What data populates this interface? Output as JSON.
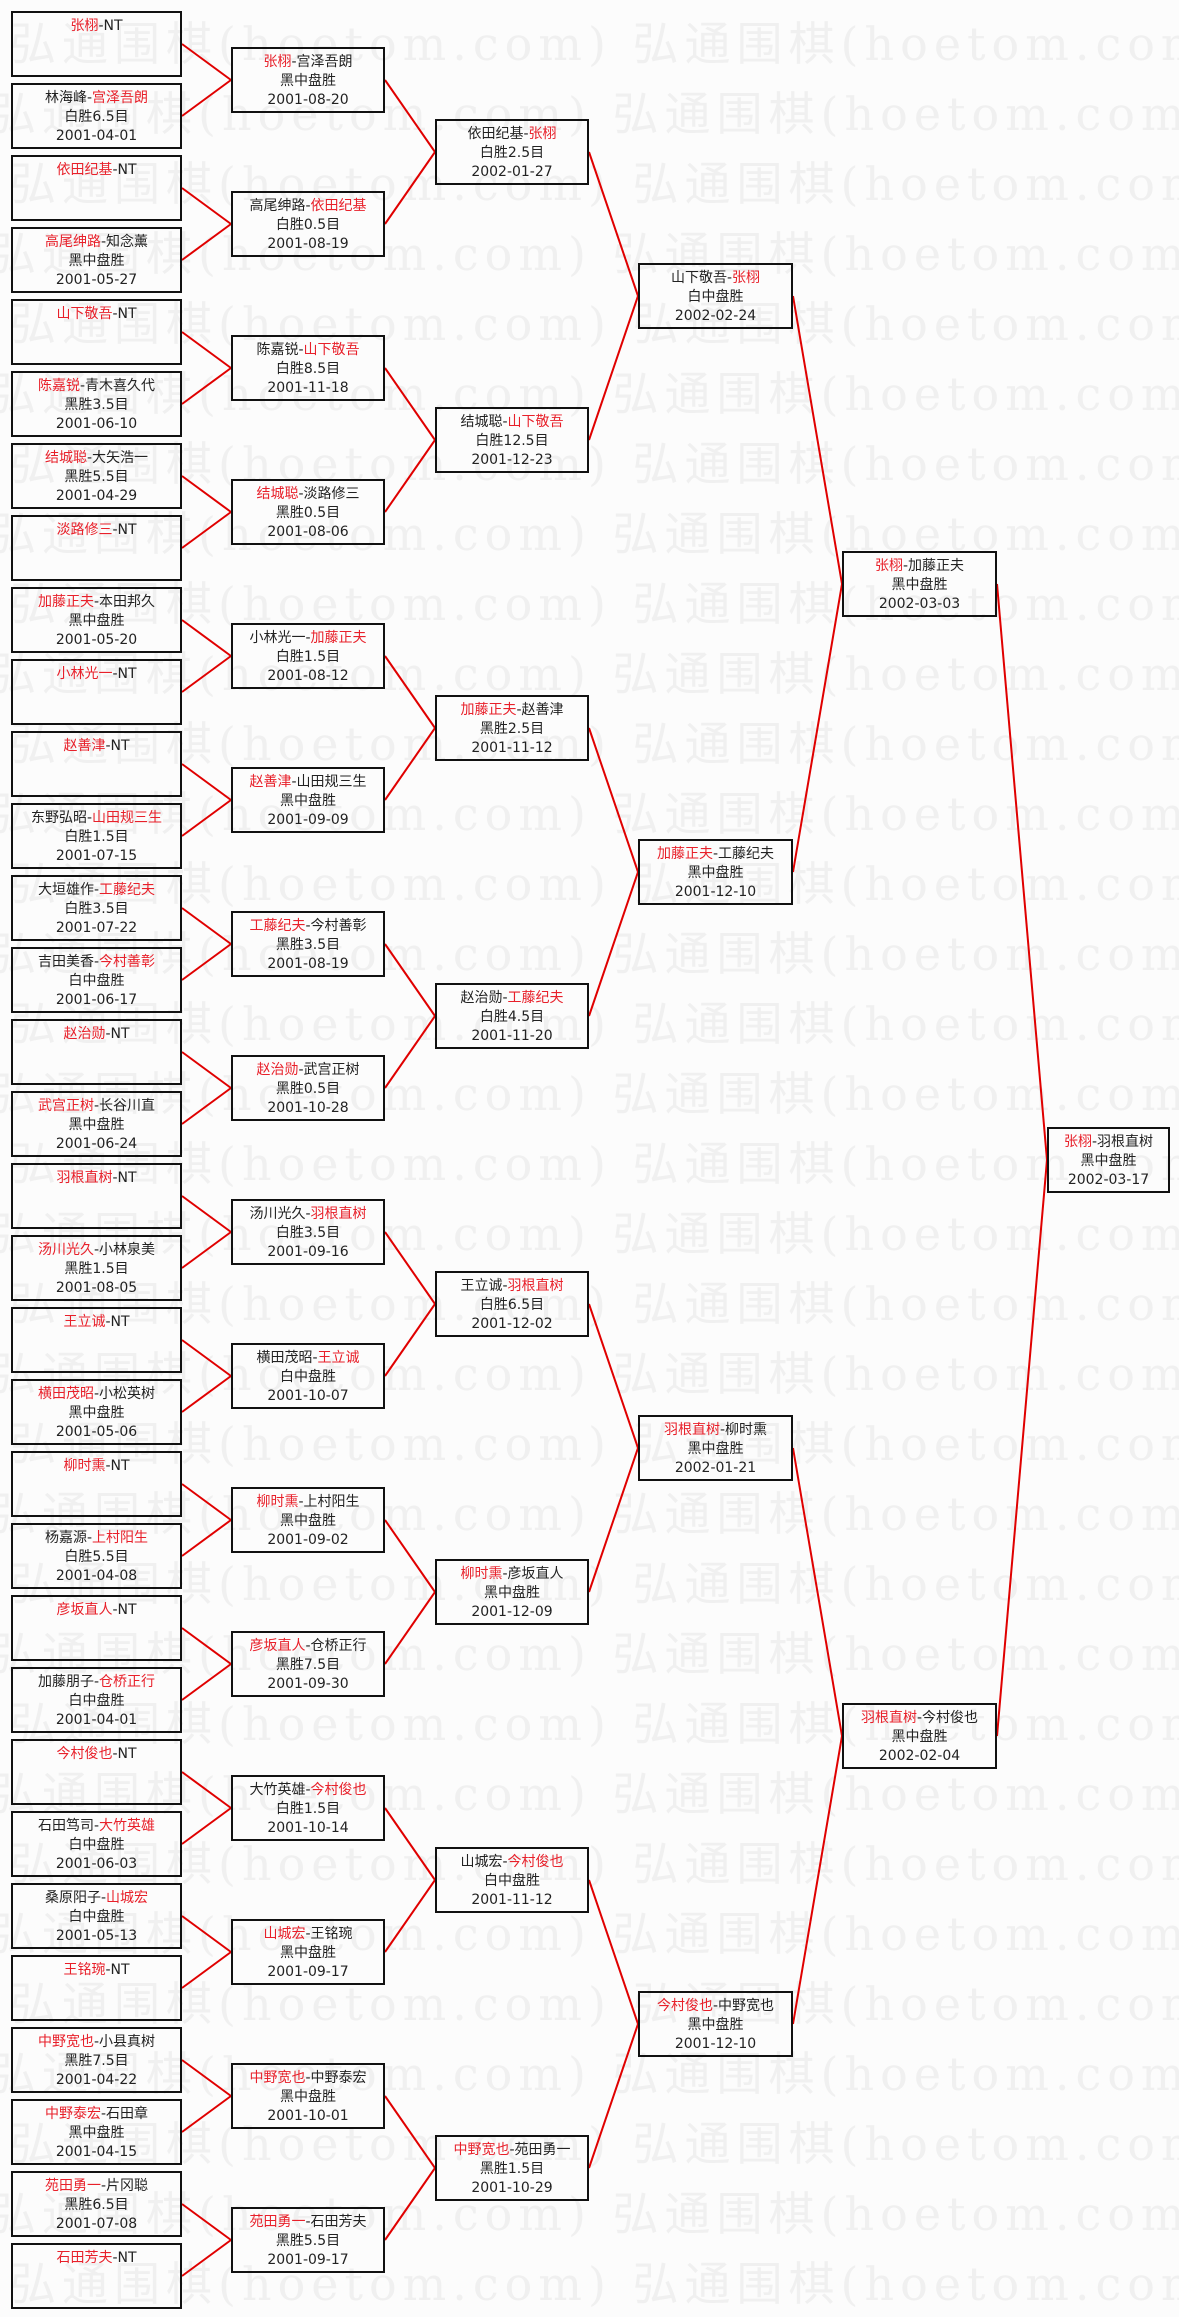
{
  "watermark": "弘通围棋(hoetom.com)",
  "colors": {
    "winner": "#e8202a",
    "line": "#e00000",
    "border": "#111111",
    "background": "#fcfcfc"
  },
  "separator": "-",
  "rounds": [
    [
      {
        "a": "张栩",
        "b": "NT",
        "winner": 0
      },
      {
        "a": "林海峰",
        "b": "宫泽吾朗",
        "winner": 1,
        "result": "白胜6.5目",
        "date": "2001-04-01"
      },
      {
        "a": "依田纪基",
        "b": "NT",
        "winner": 0
      },
      {
        "a": "高尾绅路",
        "b": "知念薰",
        "winner": 0,
        "result": "黑中盘胜",
        "date": "2001-05-27"
      },
      {
        "a": "山下敬吾",
        "b": "NT",
        "winner": 0
      },
      {
        "a": "陈嘉锐",
        "b": "青木喜久代",
        "winner": 0,
        "result": "黑胜3.5目",
        "date": "2001-06-10"
      },
      {
        "a": "结城聪",
        "b": "大矢浩一",
        "winner": 0,
        "result": "黑胜5.5目",
        "date": "2001-04-29"
      },
      {
        "a": "淡路修三",
        "b": "NT",
        "winner": 0
      },
      {
        "a": "加藤正夫",
        "b": "本田邦久",
        "winner": 0,
        "result": "黑中盘胜",
        "date": "2001-05-20"
      },
      {
        "a": "小林光一",
        "b": "NT",
        "winner": 0
      },
      {
        "a": "赵善津",
        "b": "NT",
        "winner": 0
      },
      {
        "a": "东野弘昭",
        "b": "山田规三生",
        "winner": 1,
        "result": "白胜1.5目",
        "date": "2001-07-15"
      },
      {
        "a": "大垣雄作",
        "b": "工藤纪夫",
        "winner": 1,
        "result": "白胜3.5目",
        "date": "2001-07-22"
      },
      {
        "a": "吉田美香",
        "b": "今村善彰",
        "winner": 1,
        "result": "白中盘胜",
        "date": "2001-06-17"
      },
      {
        "a": "赵治勋",
        "b": "NT",
        "winner": 0
      },
      {
        "a": "武宫正树",
        "b": "长谷川直",
        "winner": 0,
        "result": "黑中盘胜",
        "date": "2001-06-24"
      },
      {
        "a": "羽根直树",
        "b": "NT",
        "winner": 0
      },
      {
        "a": "汤川光久",
        "b": "小林泉美",
        "winner": 0,
        "result": "黑胜1.5目",
        "date": "2001-08-05"
      },
      {
        "a": "王立诚",
        "b": "NT",
        "winner": 0
      },
      {
        "a": "横田茂昭",
        "b": "小松英树",
        "winner": 0,
        "result": "黑中盘胜",
        "date": "2001-05-06"
      },
      {
        "a": "柳时熏",
        "b": "NT",
        "winner": 0
      },
      {
        "a": "杨嘉源",
        "b": "上村阳生",
        "winner": 1,
        "result": "白胜5.5目",
        "date": "2001-04-08"
      },
      {
        "a": "彦坂直人",
        "b": "NT",
        "winner": 0
      },
      {
        "a": "加藤朋子",
        "b": "仓桥正行",
        "winner": 1,
        "result": "白中盘胜",
        "date": "2001-04-01"
      },
      {
        "a": "今村俊也",
        "b": "NT",
        "winner": 0
      },
      {
        "a": "石田笃司",
        "b": "大竹英雄",
        "winner": 1,
        "result": "白中盘胜",
        "date": "2001-06-03"
      },
      {
        "a": "桑原阳子",
        "b": "山城宏",
        "winner": 1,
        "result": "白中盘胜",
        "date": "2001-05-13"
      },
      {
        "a": "王铭琬",
        "b": "NT",
        "winner": 0
      },
      {
        "a": "中野宽也",
        "b": "小县真树",
        "winner": 0,
        "result": "黑胜7.5目",
        "date": "2001-04-22"
      },
      {
        "a": "中野泰宏",
        "b": "石田章",
        "winner": 0,
        "result": "黑中盘胜",
        "date": "2001-04-15"
      },
      {
        "a": "苑田勇一",
        "b": "片冈聪",
        "winner": 0,
        "result": "黑胜6.5目",
        "date": "2001-07-08"
      },
      {
        "a": "石田芳夫",
        "b": "NT",
        "winner": 0
      }
    ],
    [
      {
        "a": "张栩",
        "b": "宫泽吾朗",
        "winner": 0,
        "result": "黑中盘胜",
        "date": "2001-08-20"
      },
      {
        "a": "高尾绅路",
        "b": "依田纪基",
        "winner": 1,
        "result": "白胜0.5目",
        "date": "2001-08-19"
      },
      {
        "a": "陈嘉锐",
        "b": "山下敬吾",
        "winner": 1,
        "result": "白胜8.5目",
        "date": "2001-11-18"
      },
      {
        "a": "结城聪",
        "b": "淡路修三",
        "winner": 0,
        "result": "黑胜0.5目",
        "date": "2001-08-06"
      },
      {
        "a": "小林光一",
        "b": "加藤正夫",
        "winner": 1,
        "result": "白胜1.5目",
        "date": "2001-08-12"
      },
      {
        "a": "赵善津",
        "b": "山田规三生",
        "winner": 0,
        "result": "黑中盘胜",
        "date": "2001-09-09"
      },
      {
        "a": "工藤纪夫",
        "b": "今村善彰",
        "winner": 0,
        "result": "黑胜3.5目",
        "date": "2001-08-19"
      },
      {
        "a": "赵治勋",
        "b": "武宫正树",
        "winner": 0,
        "result": "黑胜0.5目",
        "date": "2001-10-28"
      },
      {
        "a": "汤川光久",
        "b": "羽根直树",
        "winner": 1,
        "result": "白胜3.5目",
        "date": "2001-09-16"
      },
      {
        "a": "横田茂昭",
        "b": "王立诚",
        "winner": 1,
        "result": "白中盘胜",
        "date": "2001-10-07"
      },
      {
        "a": "柳时熏",
        "b": "上村阳生",
        "winner": 0,
        "result": "黑中盘胜",
        "date": "2001-09-02"
      },
      {
        "a": "彦坂直人",
        "b": "仓桥正行",
        "winner": 0,
        "result": "黑胜7.5目",
        "date": "2001-09-30"
      },
      {
        "a": "大竹英雄",
        "b": "今村俊也",
        "winner": 1,
        "result": "白胜1.5目",
        "date": "2001-10-14"
      },
      {
        "a": "山城宏",
        "b": "王铭琬",
        "winner": 0,
        "result": "黑中盘胜",
        "date": "2001-09-17"
      },
      {
        "a": "中野宽也",
        "b": "中野泰宏",
        "winner": 0,
        "result": "黑中盘胜",
        "date": "2001-10-01"
      },
      {
        "a": "苑田勇一",
        "b": "石田芳夫",
        "winner": 0,
        "result": "黑胜5.5目",
        "date": "2001-09-17"
      }
    ],
    [
      {
        "a": "依田纪基",
        "b": "张栩",
        "winner": 1,
        "result": "白胜2.5目",
        "date": "2002-01-27"
      },
      {
        "a": "结城聪",
        "b": "山下敬吾",
        "winner": 1,
        "result": "白胜12.5目",
        "date": "2001-12-23"
      },
      {
        "a": "加藤正夫",
        "b": "赵善津",
        "winner": 0,
        "result": "黑胜2.5目",
        "date": "2001-11-12"
      },
      {
        "a": "赵治勋",
        "b": "工藤纪夫",
        "winner": 1,
        "result": "白胜4.5目",
        "date": "2001-11-20"
      },
      {
        "a": "王立诚",
        "b": "羽根直树",
        "winner": 1,
        "result": "白胜6.5目",
        "date": "2001-12-02"
      },
      {
        "a": "柳时熏",
        "b": "彦坂直人",
        "winner": 0,
        "result": "黑中盘胜",
        "date": "2001-12-09"
      },
      {
        "a": "山城宏",
        "b": "今村俊也",
        "winner": 1,
        "result": "白中盘胜",
        "date": "2001-11-12"
      },
      {
        "a": "中野宽也",
        "b": "苑田勇一",
        "winner": 0,
        "result": "黑胜1.5目",
        "date": "2001-10-29"
      }
    ],
    [
      {
        "a": "山下敬吾",
        "b": "张栩",
        "winner": 1,
        "result": "白中盘胜",
        "date": "2002-02-24"
      },
      {
        "a": "加藤正夫",
        "b": "工藤纪夫",
        "winner": 0,
        "result": "黑中盘胜",
        "date": "2001-12-10"
      },
      {
        "a": "羽根直树",
        "b": "柳时熏",
        "winner": 0,
        "result": "黑中盘胜",
        "date": "2002-01-21"
      },
      {
        "a": "今村俊也",
        "b": "中野宽也",
        "winner": 0,
        "result": "黑中盘胜",
        "date": "2001-12-10"
      }
    ],
    [
      {
        "a": "张栩",
        "b": "加藤正夫",
        "winner": 0,
        "result": "黑中盘胜",
        "date": "2002-03-03"
      },
      {
        "a": "羽根直树",
        "b": "今村俊也",
        "winner": 0,
        "result": "黑中盘胜",
        "date": "2002-02-04"
      }
    ],
    [
      {
        "a": "张栩",
        "b": "羽根直树",
        "winner": 0,
        "result": "黑中盘胜",
        "date": "2002-03-17"
      }
    ]
  ]
}
